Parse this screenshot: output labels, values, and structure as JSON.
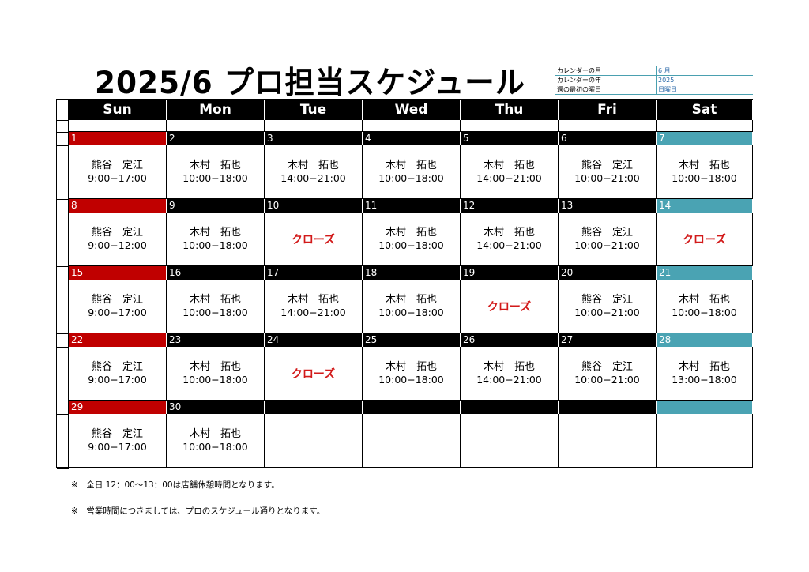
{
  "title": "2025/6  プロ担当スケジュール",
  "info": [
    {
      "label": "カレンダーの月",
      "value": "6 月"
    },
    {
      "label": "カレンダーの年",
      "value": "2025"
    },
    {
      "label": "週の最初の曜日",
      "value": "日曜日"
    }
  ],
  "weekdays": [
    "Sun",
    "Mon",
    "Tue",
    "Wed",
    "Thu",
    "Fri",
    "Sat"
  ],
  "weeks": [
    [
      {
        "day": "1",
        "name": "熊谷　定江",
        "time": "9:00−17:00"
      },
      {
        "day": "2",
        "name": "木村　拓也",
        "time": "10:00−18:00"
      },
      {
        "day": "3",
        "name": "木村　拓也",
        "time": "14:00−21:00"
      },
      {
        "day": "4",
        "name": "木村　拓也",
        "time": "10:00−18:00"
      },
      {
        "day": "5",
        "name": "木村　拓也",
        "time": "14:00−21:00"
      },
      {
        "day": "6",
        "name": "熊谷　定江",
        "time": "10:00−21:00"
      },
      {
        "day": "7",
        "name": "木村　拓也",
        "time": "10:00−18:00"
      }
    ],
    [
      {
        "day": "8",
        "name": "熊谷　定江",
        "time": "9:00−12:00"
      },
      {
        "day": "9",
        "name": "木村　拓也",
        "time": "10:00−18:00"
      },
      {
        "day": "10",
        "closed": "クローズ"
      },
      {
        "day": "11",
        "name": "木村　拓也",
        "time": "10:00−18:00"
      },
      {
        "day": "12",
        "name": "木村　拓也",
        "time": "14:00−21:00"
      },
      {
        "day": "13",
        "name": "熊谷　定江",
        "time": "10:00−21:00"
      },
      {
        "day": "14",
        "closed": "クローズ"
      }
    ],
    [
      {
        "day": "15",
        "name": "熊谷　定江",
        "time": "9:00−17:00"
      },
      {
        "day": "16",
        "name": "木村　拓也",
        "time": "10:00−18:00"
      },
      {
        "day": "17",
        "name": "木村　拓也",
        "time": "14:00−21:00"
      },
      {
        "day": "18",
        "name": "木村　拓也",
        "time": "10:00−18:00"
      },
      {
        "day": "19",
        "closed": "クローズ"
      },
      {
        "day": "20",
        "name": "熊谷　定江",
        "time": "10:00−21:00"
      },
      {
        "day": "21",
        "name": "木村　拓也",
        "time": "10:00−18:00"
      }
    ],
    [
      {
        "day": "22",
        "name": "熊谷　定江",
        "time": "9:00−17:00"
      },
      {
        "day": "23",
        "name": "木村　拓也",
        "time": "10:00−18:00"
      },
      {
        "day": "24",
        "closed": "クローズ"
      },
      {
        "day": "25",
        "name": "木村　拓也",
        "time": "10:00−18:00"
      },
      {
        "day": "26",
        "name": "木村　拓也",
        "time": "14:00−21:00"
      },
      {
        "day": "27",
        "name": "熊谷　定江",
        "time": "10:00−21:00"
      },
      {
        "day": "28",
        "name": "木村　拓也",
        "time": "13:00−18:00"
      }
    ],
    [
      {
        "day": "29",
        "name": "熊谷　定江",
        "time": "9:00−17:00"
      },
      {
        "day": "30",
        "name": "木村　拓也",
        "time": "10:00−18:00"
      },
      {
        "day": ""
      },
      {
        "day": ""
      },
      {
        "day": ""
      },
      {
        "day": ""
      },
      {
        "day": ""
      }
    ]
  ],
  "notes": [
    "※　全日 12：00～13：00は店舗休憩時間となります。",
    "※　営業時間につきましては、プロのスケジュール通りとなります。"
  ],
  "colors": {
    "sunday": "#c00000",
    "saturday": "#4aa3b3",
    "closed": "#d21a1a",
    "header": "#000000"
  }
}
